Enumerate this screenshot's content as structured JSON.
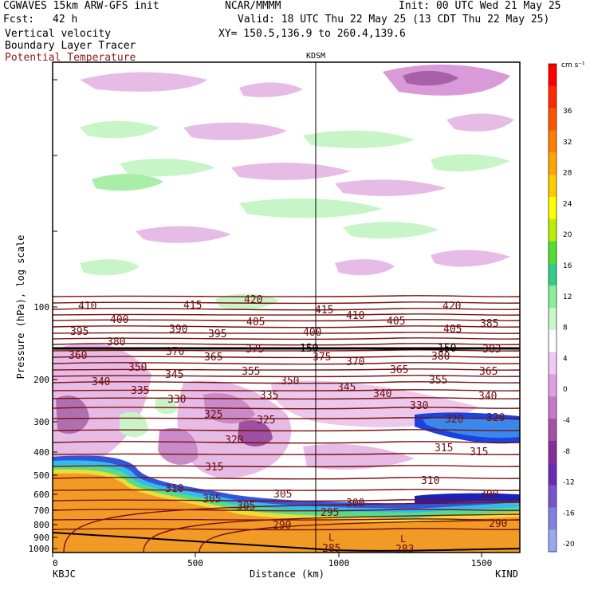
{
  "header": {
    "model": "CGWAVES 15km ARW-GFS init",
    "org": "NCAR/MMMM",
    "init": "Init: 00 UTC Wed 21 May 25",
    "fcst_label": "Fcst:",
    "fcst_value": "42 h",
    "valid": "Valid: 18 UTC Thu 22 May 25 (13 CDT Thu 22 May 25)",
    "field1": "Vertical velocity",
    "field2": "Boundary Layer Tracer",
    "field3": "Potential Temperature",
    "xy": "XY= 150.5,136.9 to 260.4,139.6",
    "station_mid": "KDSM"
  },
  "chart_data": {
    "type": "heatmap",
    "title": "Vertical velocity / Boundary Layer Tracer / Potential Temperature cross-section",
    "xlabel": "Distance (km)",
    "ylabel": "Pressure (hPa), log scale",
    "x_ticks": [
      "0",
      "500",
      "1000",
      "1500"
    ],
    "y_ticks": [
      "100",
      "200",
      "300",
      "400",
      "500",
      "600",
      "700",
      "800",
      "900",
      "1000"
    ],
    "x_endpoint_left": "KBJC",
    "x_endpoint_right": "KIND",
    "colorbar": {
      "unit": "cm s⁻¹",
      "tick_labels": [
        "36",
        "32",
        "28",
        "24",
        "20",
        "16",
        "12",
        "8",
        "4",
        "0",
        "-4",
        "-8",
        "-12",
        "-16",
        "-20"
      ],
      "colors": [
        "#ff0000",
        "#ff2a00",
        "#ff5500",
        "#ff7f00",
        "#ffa500",
        "#ffcc00",
        "#ffff00",
        "#bbee00",
        "#55dd33",
        "#33cc88",
        "#88ee99",
        "#c8f7c8",
        "#ffffff",
        "#f2c8f2",
        "#e0a0e0",
        "#c878c8",
        "#a850a8",
        "#8a2b9a",
        "#6b2ab8",
        "#7755cc",
        "#7f80e0",
        "#9aa8f0"
      ]
    },
    "theta_labels": [
      "410",
      "415",
      "420",
      "415",
      "420",
      "400",
      "405",
      "410",
      "405",
      "385",
      "395",
      "390",
      "395",
      "400",
      "405",
      "380",
      "375",
      "150",
      "150",
      "383",
      "360",
      "370",
      "365",
      "375",
      "380",
      "350",
      "345",
      "355",
      "370",
      "365",
      "340",
      "335",
      "350",
      "345",
      "355",
      "365",
      "330",
      "335",
      "340",
      "340",
      "325",
      "325",
      "330",
      "320",
      "320",
      "320",
      "315",
      "315",
      "315",
      "310",
      "310",
      "305",
      "305",
      "300",
      "305",
      "300",
      "295",
      "290",
      "290",
      "285",
      "283"
    ],
    "l_markers": [
      "L",
      "L"
    ]
  }
}
